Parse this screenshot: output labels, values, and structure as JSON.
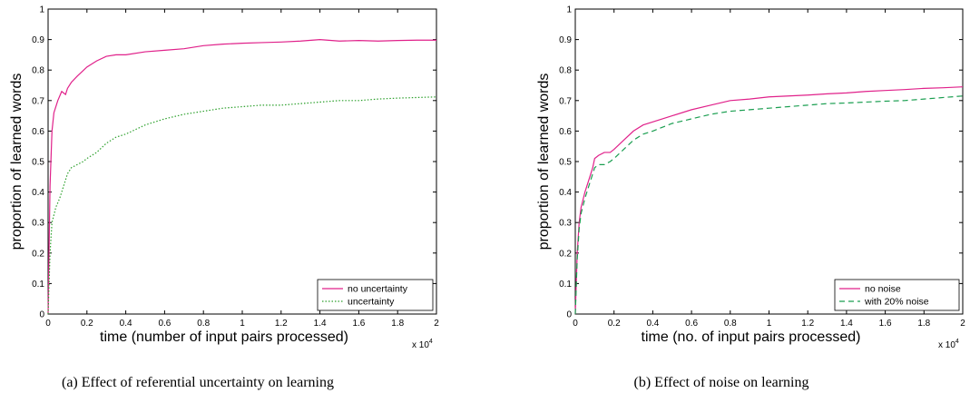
{
  "chart_data": [
    {
      "type": "line",
      "xlabel": "time (number of input pairs processed)",
      "ylabel": "proportion of learned words",
      "x_exponent_label": "x 10^4",
      "xlim": [
        0,
        2
      ],
      "ylim": [
        0,
        1
      ],
      "xticks": [
        "0",
        "0.2",
        "0.4",
        "0.6",
        "0.8",
        "1",
        "1.2",
        "1.4",
        "1.6",
        "1.8",
        "2"
      ],
      "yticks": [
        "0",
        "0.1",
        "0.2",
        "0.3",
        "0.4",
        "0.5",
        "0.6",
        "0.7",
        "0.8",
        "0.9",
        "1"
      ],
      "grid": false,
      "legend_position": "bottom-right",
      "caption": "(a)  Effect of referential uncertainty on learning",
      "series": [
        {
          "name": "no uncertainty",
          "color": "#e0218a",
          "style": "solid",
          "x": [
            0,
            0.01,
            0.02,
            0.03,
            0.05,
            0.07,
            0.09,
            0.1,
            0.12,
            0.15,
            0.2,
            0.25,
            0.3,
            0.35,
            0.4,
            0.5,
            0.6,
            0.7,
            0.8,
            0.9,
            1.0,
            1.1,
            1.2,
            1.3,
            1.4,
            1.5,
            1.6,
            1.7,
            1.8,
            1.9,
            2.0
          ],
          "y": [
            0,
            0.42,
            0.6,
            0.66,
            0.7,
            0.73,
            0.72,
            0.74,
            0.76,
            0.78,
            0.81,
            0.83,
            0.845,
            0.85,
            0.85,
            0.86,
            0.865,
            0.87,
            0.88,
            0.885,
            0.888,
            0.89,
            0.892,
            0.895,
            0.9,
            0.895,
            0.897,
            0.895,
            0.897,
            0.898,
            0.898
          ]
        },
        {
          "name": "uncertainty",
          "color": "#2ca02c",
          "style": "dotted",
          "x": [
            0,
            0.01,
            0.02,
            0.04,
            0.06,
            0.08,
            0.1,
            0.12,
            0.15,
            0.18,
            0.2,
            0.25,
            0.3,
            0.35,
            0.4,
            0.5,
            0.6,
            0.7,
            0.8,
            0.9,
            1.0,
            1.1,
            1.2,
            1.3,
            1.4,
            1.5,
            1.6,
            1.7,
            1.8,
            1.9,
            2.0
          ],
          "y": [
            0,
            0.2,
            0.3,
            0.35,
            0.38,
            0.42,
            0.46,
            0.48,
            0.49,
            0.5,
            0.51,
            0.53,
            0.56,
            0.58,
            0.59,
            0.62,
            0.64,
            0.655,
            0.665,
            0.675,
            0.68,
            0.685,
            0.685,
            0.69,
            0.695,
            0.7,
            0.7,
            0.705,
            0.708,
            0.71,
            0.712
          ]
        }
      ]
    },
    {
      "type": "line",
      "xlabel": "time (no. of input pairs processed)",
      "ylabel": "proportion of learned words",
      "x_exponent_label": "x 10^4",
      "xlim": [
        0,
        2
      ],
      "ylim": [
        0,
        1
      ],
      "xticks": [
        "0",
        "0.2",
        "0.4",
        "0.6",
        "0.8",
        "1",
        "1.2",
        "1.4",
        "1.6",
        "1.8",
        "2"
      ],
      "yticks": [
        "0",
        "0.1",
        "0.2",
        "0.3",
        "0.4",
        "0.5",
        "0.6",
        "0.7",
        "0.8",
        "0.9",
        "1"
      ],
      "grid": false,
      "legend_position": "bottom-right",
      "caption": "(b)  Effect of noise on learning",
      "series": [
        {
          "name": "no noise",
          "color": "#e0218a",
          "style": "solid",
          "x": [
            0,
            0.01,
            0.02,
            0.03,
            0.05,
            0.07,
            0.09,
            0.1,
            0.12,
            0.15,
            0.18,
            0.2,
            0.25,
            0.3,
            0.35,
            0.4,
            0.5,
            0.6,
            0.7,
            0.8,
            0.9,
            1.0,
            1.1,
            1.2,
            1.3,
            1.4,
            1.5,
            1.6,
            1.7,
            1.8,
            1.9,
            2.0
          ],
          "y": [
            0,
            0.2,
            0.3,
            0.35,
            0.4,
            0.44,
            0.48,
            0.51,
            0.52,
            0.53,
            0.53,
            0.54,
            0.57,
            0.6,
            0.62,
            0.63,
            0.65,
            0.67,
            0.685,
            0.7,
            0.705,
            0.712,
            0.715,
            0.718,
            0.722,
            0.725,
            0.73,
            0.733,
            0.736,
            0.74,
            0.742,
            0.745
          ]
        },
        {
          "name": "with 20% noise",
          "color": "#1a9e50",
          "style": "dashed",
          "x": [
            0,
            0.01,
            0.02,
            0.03,
            0.05,
            0.07,
            0.09,
            0.1,
            0.12,
            0.15,
            0.18,
            0.2,
            0.25,
            0.3,
            0.35,
            0.4,
            0.5,
            0.6,
            0.7,
            0.8,
            0.9,
            1.0,
            1.1,
            1.2,
            1.3,
            1.4,
            1.5,
            1.6,
            1.7,
            1.8,
            1.9,
            2.0
          ],
          "y": [
            0,
            0.18,
            0.28,
            0.33,
            0.38,
            0.42,
            0.46,
            0.48,
            0.49,
            0.49,
            0.5,
            0.51,
            0.54,
            0.57,
            0.59,
            0.6,
            0.625,
            0.64,
            0.655,
            0.665,
            0.67,
            0.675,
            0.68,
            0.685,
            0.69,
            0.692,
            0.695,
            0.698,
            0.7,
            0.705,
            0.71,
            0.715
          ]
        }
      ]
    }
  ]
}
